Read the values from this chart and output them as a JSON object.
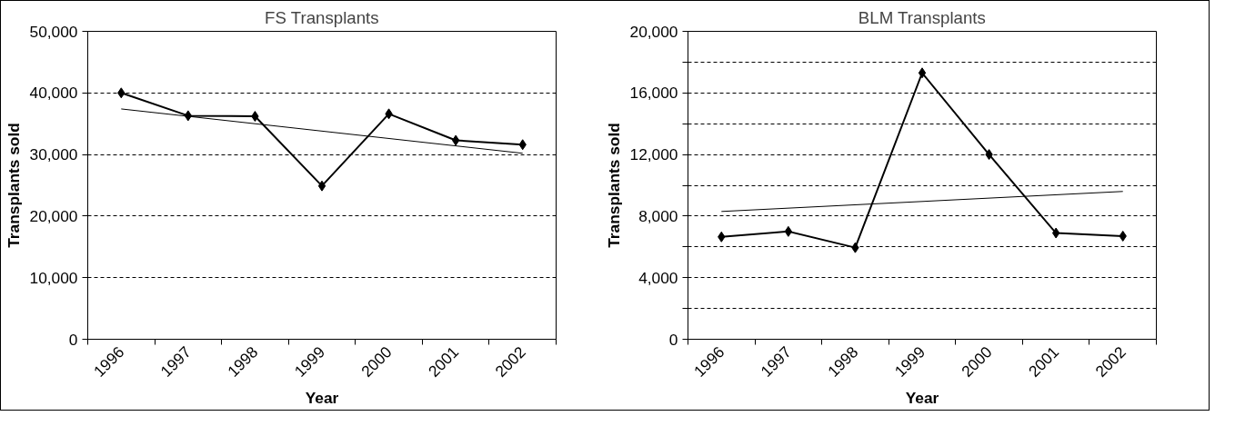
{
  "chart_data": [
    {
      "type": "line",
      "title": "FS Transplants",
      "xlabel": "Year",
      "ylabel": "Transplants sold",
      "categories": [
        "1996",
        "1997",
        "1998",
        "1999",
        "2000",
        "2001",
        "2002"
      ],
      "series": [
        {
          "color": "#000000",
          "marker": "diamond",
          "values": [
            40000,
            36300,
            36200,
            24900,
            36600,
            32300,
            31600
          ]
        },
        {
          "type": "line",
          "color": "#000000",
          "marker": "none",
          "values": [
            37400,
            null,
            null,
            null,
            null,
            null,
            30200
          ]
        }
      ],
      "ylim": [
        0,
        50000
      ],
      "yticks": [
        {
          "value": 0,
          "label": "0"
        },
        {
          "value": 10000,
          "label": "10,000"
        },
        {
          "value": 20000,
          "label": "20,000"
        },
        {
          "value": 30000,
          "label": "30,000"
        },
        {
          "value": 40000,
          "label": "40,000"
        },
        {
          "value": 50000,
          "label": "50,000"
        }
      ],
      "grid": "y",
      "line_style": "solid"
    },
    {
      "type": "line",
      "title": "BLM Transplants",
      "xlabel": "Year",
      "ylabel": "Transplants sold",
      "categories": [
        "1996",
        "1997",
        "1998",
        "1999",
        "2000",
        "2001",
        "2002"
      ],
      "series": [
        {
          "color": "#000000",
          "marker": "diamond",
          "values": [
            6650,
            7000,
            5950,
            17300,
            12000,
            6900,
            6700
          ]
        },
        {
          "type": "line",
          "color": "#000000",
          "marker": "none",
          "values": [
            8300,
            null,
            null,
            null,
            null,
            null,
            9600
          ]
        }
      ],
      "ylim": [
        0,
        20000
      ],
      "yticks": [
        {
          "value": 0,
          "label": "0"
        },
        {
          "value": 2000,
          "label": null
        },
        {
          "value": 4000,
          "label": "4,000"
        },
        {
          "value": 6000,
          "label": null
        },
        {
          "value": 8000,
          "label": "8,000"
        },
        {
          "value": 10000,
          "label": null
        },
        {
          "value": 12000,
          "label": "12,000"
        },
        {
          "value": 14000,
          "label": null
        },
        {
          "value": 16000,
          "label": "16,000"
        },
        {
          "value": 18000,
          "label": null
        },
        {
          "value": 20000,
          "label": "20,000"
        }
      ],
      "grid": "y",
      "line_style": "solid"
    }
  ]
}
